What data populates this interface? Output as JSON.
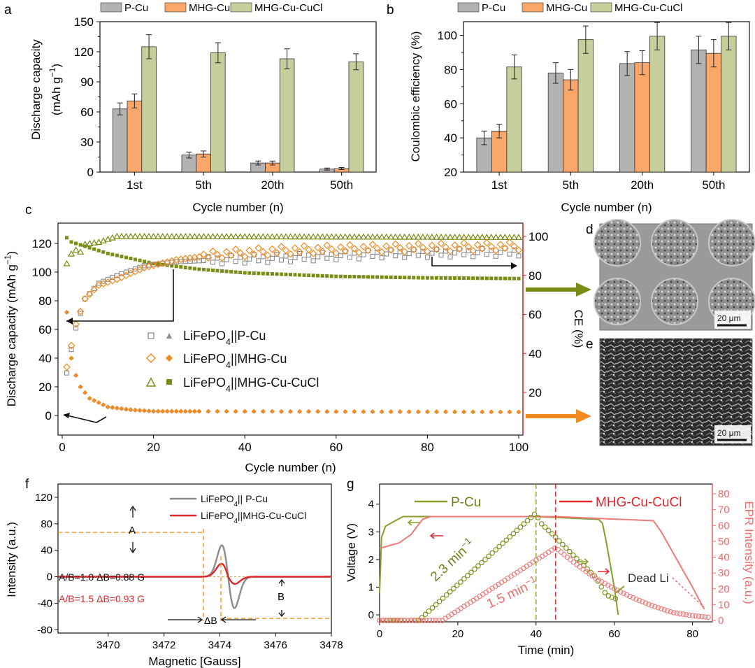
{
  "colors": {
    "pcu": "#b3b3b3",
    "mhg": "#f9a86a",
    "cucl": "#c6ce9c",
    "olive": "#7a8c14",
    "orange": "#f28a22",
    "gray": "#8c8c8c",
    "red": "#e3262b",
    "pink": "#f06b6b",
    "dashorange": "#f39a2c",
    "black": "#111111"
  },
  "panels": {
    "a": {
      "label": "a"
    },
    "b": {
      "label": "b"
    },
    "c": {
      "label": "c"
    },
    "d": {
      "label": "d",
      "scale": "20 μm"
    },
    "e": {
      "label": "e",
      "scale": "20 μm"
    },
    "f": {
      "label": "f"
    },
    "g": {
      "label": "g"
    }
  },
  "chart_data": [
    {
      "id": "a",
      "type": "bar",
      "categories": [
        "1st",
        "5th",
        "20th",
        "50th"
      ],
      "xlabel": "Cycle number (n)",
      "ylabel": "Discharge capacity",
      "ylabel_unit": "(mAh g",
      "ylabel_sup": "−1",
      "ylabel_close": ")",
      "ylim": [
        0,
        150
      ],
      "yticks": [
        "0",
        "30",
        "60",
        "90",
        "120",
        "150"
      ],
      "series": [
        {
          "name": "P-Cu",
          "color": "#b3b3b3",
          "values": [
            63,
            17,
            9,
            3
          ],
          "errors": [
            6,
            3,
            2,
            1
          ]
        },
        {
          "name": "MHG-Cu",
          "color": "#f9a86a",
          "values": [
            71,
            18,
            9,
            3.5
          ],
          "errors": [
            7,
            3,
            2,
            1
          ]
        },
        {
          "name": "MHG-Cu-CuCl",
          "color": "#c6ce9c",
          "values": [
            125,
            119,
            113,
            110
          ],
          "errors": [
            12,
            10,
            10,
            8
          ]
        }
      ]
    },
    {
      "id": "b",
      "type": "bar",
      "categories": [
        "1st",
        "5th",
        "20th",
        "50th"
      ],
      "xlabel": "Cycle number (n)",
      "ylabel": "Coulombic efficiency (%)",
      "ylim": [
        20,
        108
      ],
      "yticks": [
        "20",
        "40",
        "60",
        "80",
        "100"
      ],
      "series": [
        {
          "name": "P-Cu",
          "color": "#b3b3b3",
          "values": [
            40,
            78,
            83.5,
            91.5
          ],
          "errors": [
            4,
            6,
            7,
            8
          ]
        },
        {
          "name": "MHG-Cu",
          "color": "#f9a86a",
          "values": [
            44,
            74,
            84,
            89.5
          ],
          "errors": [
            4,
            6,
            7,
            8
          ]
        },
        {
          "name": "MHG-Cu-CuCl",
          "color": "#c6ce9c",
          "values": [
            81.5,
            97.5,
            99.5,
            99.5
          ],
          "errors": [
            7,
            8,
            8,
            8
          ]
        }
      ]
    },
    {
      "id": "c",
      "type": "scatter",
      "xlabel": "Cycle number (n)",
      "ylabel": "Discharge capacity (mAh g",
      "ylabel_sup": "−1",
      "ylabel_close": ")",
      "y2label": "CE (%)",
      "xlim": [
        0,
        100
      ],
      "ylim": [
        -8,
        132
      ],
      "y2lim": [
        0,
        105
      ],
      "xticks": [
        "0",
        "20",
        "40",
        "60",
        "80",
        "100"
      ],
      "yticks": [
        "0",
        "20",
        "40",
        "60",
        "80",
        "100",
        "120"
      ],
      "y2ticks": [
        "20",
        "40",
        "60",
        "80",
        "100"
      ],
      "legend": [
        {
          "prefix": "LiFePO",
          "sub": "4",
          "suffix": "||P-Cu",
          "color": "#8c8c8c"
        },
        {
          "prefix": "LiFePO",
          "sub": "4",
          "suffix": "||MHG-Cu",
          "color": "#f28a22"
        },
        {
          "prefix": "LiFePO",
          "sub": "4",
          "suffix": "||MHG-Cu-CuCl",
          "color": "#7a8c14"
        }
      ],
      "capacity_cucl_anchor": [
        [
          1,
          124
        ],
        [
          2,
          121
        ],
        [
          5,
          118
        ],
        [
          10,
          113
        ],
        [
          20,
          106
        ],
        [
          30,
          102
        ],
        [
          40,
          99.5
        ],
        [
          60,
          97
        ],
        [
          80,
          96
        ],
        [
          100,
          95.5
        ]
      ],
      "capacity_fade_anchor": [
        [
          1,
          72
        ],
        [
          2,
          40
        ],
        [
          3,
          28
        ],
        [
          4,
          20
        ],
        [
          6,
          12
        ],
        [
          10,
          6
        ],
        [
          15,
          4
        ],
        [
          20,
          3
        ],
        [
          100,
          2.5
        ]
      ],
      "ce_cucl_anchor": [
        [
          1,
          86
        ],
        [
          2,
          91
        ],
        [
          3,
          93
        ],
        [
          4,
          92
        ],
        [
          5,
          96
        ],
        [
          8,
          97
        ],
        [
          12,
          100
        ],
        [
          100,
          99.5
        ]
      ],
      "ce_pcu_anchor": [
        [
          1,
          30
        ],
        [
          2,
          42
        ],
        [
          3,
          53
        ],
        [
          5,
          68
        ],
        [
          8,
          76
        ],
        [
          12,
          80
        ],
        [
          18,
          85
        ],
        [
          25,
          87
        ],
        [
          35,
          88
        ],
        [
          50,
          89
        ],
        [
          70,
          91
        ],
        [
          100,
          92
        ]
      ],
      "ce_mhg_anchor": [
        [
          1,
          33
        ],
        [
          2,
          44
        ],
        [
          3,
          55
        ],
        [
          5,
          68
        ],
        [
          8,
          75
        ],
        [
          12,
          78
        ],
        [
          18,
          84
        ],
        [
          25,
          88
        ],
        [
          35,
          91
        ],
        [
          50,
          93
        ],
        [
          70,
          94
        ],
        [
          100,
          95
        ]
      ]
    },
    {
      "id": "f",
      "type": "line",
      "xlabel": "Magnetic [Gauss]",
      "ylabel": "Intensity (a.u.)",
      "xlim": [
        3468.2,
        3478
      ],
      "ylim": [
        -85,
        140
      ],
      "xticks": [
        "3470",
        "3472",
        "3474",
        "3476",
        "3478"
      ],
      "yticks": [
        "-80",
        "-40",
        "0",
        "40",
        "80",
        "120"
      ],
      "series": [
        {
          "prefix": "LiFePO",
          "sub": "4",
          "suffix": "|| P-Cu",
          "color": "#8c8c8c",
          "center": 3474.3,
          "amp": 67,
          "width": 0.32
        },
        {
          "prefix": "LiFePO",
          "sub": "4",
          "suffix": "||MHG-Cu-CuCl",
          "color": "#e3262b",
          "center": 3474.3,
          "amp": 28,
          "width": 0.34
        }
      ],
      "annotations": {
        "A": "A",
        "B": "B",
        "dB": "ΔB",
        "line1": "A/B=1.0   ΔB=0.88 G",
        "line2": "A/B=1.5   ΔB=0.93 G"
      }
    },
    {
      "id": "g",
      "type": "line",
      "xlabel": "Time (min)",
      "ylabel": "Voltage (V)",
      "y2label": "EPR Intensity (a.u.)",
      "xlim": [
        0,
        84
      ],
      "ylim": [
        0,
        4.6
      ],
      "y2lim": [
        -2,
        83
      ],
      "xticks": [
        "0",
        "20",
        "40",
        "60",
        "80"
      ],
      "yticks": [
        "0",
        "1",
        "2",
        "3",
        "4"
      ],
      "y2ticks": [
        "0",
        "10",
        "20",
        "30",
        "40",
        "50",
        "60",
        "70",
        "80"
      ],
      "series": [
        {
          "name": "P-Cu",
          "color": "#7a8c14"
        },
        {
          "name": "MHG-Cu-CuCl",
          "color": "#e3262b"
        }
      ],
      "voltage_pcu": [
        [
          0,
          0.8
        ],
        [
          0.5,
          2.8
        ],
        [
          1.5,
          3.2
        ],
        [
          4,
          3.4
        ],
        [
          6,
          3.55
        ],
        [
          40,
          3.55
        ],
        [
          56,
          3.45
        ],
        [
          57,
          3.3
        ],
        [
          58,
          2.6
        ],
        [
          60,
          1.0
        ],
        [
          61,
          0
        ]
      ],
      "voltage_cucl": [
        [
          0,
          2.4
        ],
        [
          5,
          2.6
        ],
        [
          8,
          2.9
        ],
        [
          11,
          3.45
        ],
        [
          13,
          3.55
        ],
        [
          45,
          3.55
        ],
        [
          70,
          3.4
        ],
        [
          72,
          3.0
        ],
        [
          76,
          2.0
        ],
        [
          80,
          1.0
        ],
        [
          83,
          0.2
        ]
      ],
      "epr_pcu": [
        [
          0,
          0
        ],
        [
          10,
          0
        ],
        [
          40,
          68
        ],
        [
          41,
          62
        ],
        [
          44,
          55
        ],
        [
          50,
          40
        ],
        [
          55,
          28
        ],
        [
          58,
          16
        ],
        [
          61,
          13
        ]
      ],
      "epr_cucl": [
        [
          0,
          0
        ],
        [
          16,
          0
        ],
        [
          45,
          46
        ],
        [
          50,
          36
        ],
        [
          55,
          27
        ],
        [
          60,
          20
        ],
        [
          65,
          14
        ],
        [
          70,
          9
        ],
        [
          75,
          5
        ],
        [
          80,
          3
        ],
        [
          84,
          2
        ]
      ],
      "annotations": {
        "rate_pcu": "2.3 min",
        "rate_cucl": "1.5 min",
        "rate_sup": "−1",
        "dead_li": "Dead Li"
      }
    }
  ]
}
